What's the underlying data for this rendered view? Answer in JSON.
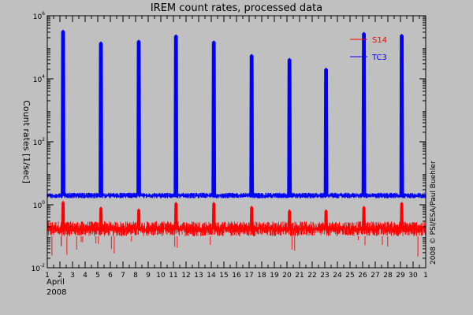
{
  "chart_data": {
    "type": "line",
    "title": "IREM count rates, processed data",
    "ylabel": "Count rates [1/sec]",
    "xlabel_month": "April",
    "xlabel_year": "2008",
    "credit": "2008 © PSI/ESA/Paul Buehler",
    "y_scale": "log",
    "ylim": [
      0.01,
      1000000
    ],
    "y_tick_values": [
      0.01,
      1,
      100,
      10000,
      1000000
    ],
    "y_tick_labels": [
      {
        "base": "10",
        "exp": "-2"
      },
      {
        "base": "10",
        "exp": "0"
      },
      {
        "base": "10",
        "exp": "2"
      },
      {
        "base": "10",
        "exp": "4"
      },
      {
        "base": "10",
        "exp": "6"
      }
    ],
    "x_range_days": [
      1,
      31
    ],
    "x_tick_labels": [
      "1",
      "2",
      "3",
      "4",
      "5",
      "6",
      "7",
      "8",
      "9",
      "10",
      "11",
      "12",
      "13",
      "14",
      "15",
      "16",
      "17",
      "18",
      "19",
      "20",
      "21",
      "22",
      "23",
      "24",
      "25",
      "26",
      "27",
      "28",
      "29",
      "30",
      "1"
    ],
    "legend_placement": "top-right",
    "grid": false,
    "series": [
      {
        "name": "S14",
        "color": "#ff0000",
        "baseline_low": 0.1,
        "baseline_high": 0.3,
        "typical": 0.17,
        "spikes": [
          {
            "day": 2.25,
            "peak": 1.3
          },
          {
            "day": 5.25,
            "peak": 0.85
          },
          {
            "day": 8.25,
            "peak": 0.75
          },
          {
            "day": 11.2,
            "peak": 1.2
          },
          {
            "day": 14.2,
            "peak": 1.2
          },
          {
            "day": 17.2,
            "peak": 0.9
          },
          {
            "day": 20.2,
            "peak": 0.7
          },
          {
            "day": 23.1,
            "peak": 0.7
          },
          {
            "day": 26.1,
            "peak": 0.9
          },
          {
            "day": 29.1,
            "peak": 1.2
          }
        ]
      },
      {
        "name": "TC3",
        "color": "#0000ff",
        "baseline_low": 1.6,
        "baseline_high": 2.4,
        "typical": 2.0,
        "spikes": [
          {
            "day": 2.25,
            "peak": 350000
          },
          {
            "day": 5.25,
            "peak": 150000
          },
          {
            "day": 8.25,
            "peak": 170000
          },
          {
            "day": 11.2,
            "peak": 250000
          },
          {
            "day": 14.2,
            "peak": 160000
          },
          {
            "day": 17.2,
            "peak": 60000
          },
          {
            "day": 20.2,
            "peak": 45000
          },
          {
            "day": 23.1,
            "peak": 22000
          },
          {
            "day": 26.1,
            "peak": 300000
          },
          {
            "day": 29.1,
            "peak": 260000
          }
        ]
      }
    ]
  }
}
